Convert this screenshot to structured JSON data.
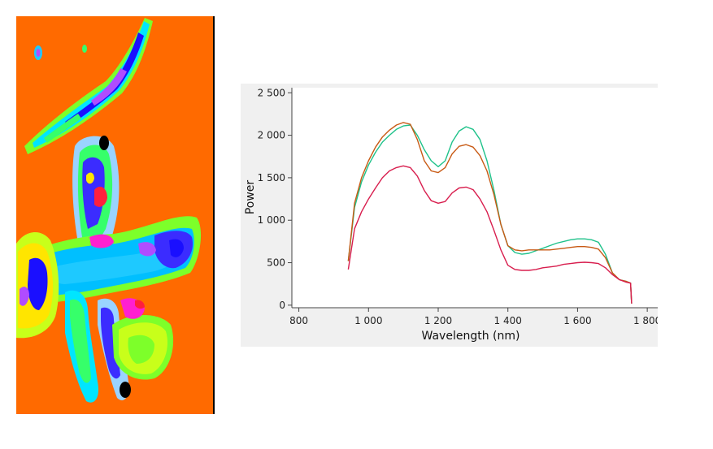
{
  "image": {
    "description_icon": "classification-map-icon",
    "background_color": "#ff6a00",
    "palette": [
      "#00e5ff",
      "#1ec9ff",
      "#00bfff",
      "#3b2cff",
      "#1a0fff",
      "#b04cff",
      "#ff1fd0",
      "#36ff6a",
      "#7dff2a",
      "#c8ff1a",
      "#ffe500",
      "#ff1f3d",
      "#000000",
      "#9ad3ff"
    ]
  },
  "chart_data": {
    "type": "line",
    "title": "",
    "xlabel": "Wavelength (nm)",
    "ylabel": "Power",
    "xlim": [
      780,
      1830
    ],
    "ylim": [
      -30,
      2560
    ],
    "xticks": [
      800,
      1000,
      1200,
      1400,
      1600,
      1800
    ],
    "yticks": [
      0,
      500,
      1000,
      1500,
      2000,
      2500
    ],
    "xtick_labels": [
      "800",
      "1 000",
      "1 200",
      "1 400",
      "1 600",
      "1 800"
    ],
    "ytick_labels": [
      "0",
      "500",
      "1 000",
      "1 500",
      "2 000",
      "2 500"
    ],
    "grid": false,
    "legend": "none",
    "background": "#f0f0f0",
    "series": [
      {
        "color": "#1fc28a",
        "x": [
          942,
          960,
          980,
          1000,
          1020,
          1040,
          1060,
          1080,
          1100,
          1120,
          1140,
          1160,
          1180,
          1200,
          1220,
          1240,
          1260,
          1280,
          1300,
          1320,
          1340,
          1360,
          1380,
          1400,
          1420,
          1440,
          1460,
          1480,
          1500,
          1520,
          1540,
          1560,
          1580,
          1600,
          1620,
          1640,
          1660,
          1680,
          1700,
          1720,
          1740,
          1752,
          1755
        ],
        "y": [
          520,
          1150,
          1450,
          1650,
          1800,
          1920,
          2000,
          2070,
          2110,
          2120,
          2000,
          1830,
          1700,
          1630,
          1700,
          1920,
          2050,
          2100,
          2070,
          1950,
          1700,
          1350,
          950,
          700,
          620,
          600,
          610,
          640,
          670,
          700,
          730,
          750,
          770,
          780,
          780,
          770,
          740,
          600,
          380,
          300,
          280,
          260,
          20
        ]
      },
      {
        "color": "#c85a14",
        "x": [
          942,
          960,
          980,
          1000,
          1020,
          1040,
          1060,
          1080,
          1100,
          1120,
          1140,
          1160,
          1180,
          1200,
          1220,
          1240,
          1260,
          1280,
          1300,
          1320,
          1340,
          1360,
          1380,
          1400,
          1420,
          1440,
          1460,
          1480,
          1500,
          1520,
          1540,
          1560,
          1580,
          1600,
          1620,
          1640,
          1660,
          1680,
          1700,
          1720,
          1740,
          1752,
          1755
        ],
        "y": [
          520,
          1200,
          1500,
          1700,
          1860,
          1980,
          2060,
          2120,
          2150,
          2130,
          1950,
          1700,
          1580,
          1560,
          1620,
          1780,
          1870,
          1890,
          1860,
          1760,
          1580,
          1300,
          950,
          700,
          650,
          640,
          650,
          650,
          650,
          650,
          660,
          670,
          680,
          690,
          690,
          680,
          660,
          560,
          380,
          300,
          280,
          260,
          20
        ]
      },
      {
        "color": "#d81e4e",
        "x": [
          942,
          960,
          980,
          1000,
          1020,
          1040,
          1060,
          1080,
          1100,
          1120,
          1140,
          1160,
          1180,
          1200,
          1220,
          1240,
          1260,
          1280,
          1300,
          1320,
          1340,
          1360,
          1380,
          1400,
          1420,
          1440,
          1460,
          1480,
          1500,
          1520,
          1540,
          1560,
          1580,
          1600,
          1620,
          1640,
          1660,
          1680,
          1700,
          1720,
          1740,
          1752,
          1755
        ],
        "y": [
          420,
          900,
          1100,
          1250,
          1380,
          1500,
          1580,
          1620,
          1640,
          1620,
          1520,
          1350,
          1230,
          1200,
          1220,
          1320,
          1380,
          1390,
          1360,
          1250,
          1100,
          880,
          650,
          470,
          420,
          410,
          410,
          420,
          440,
          450,
          460,
          480,
          490,
          500,
          505,
          500,
          490,
          440,
          360,
          300,
          270,
          260,
          20
        ]
      }
    ]
  }
}
